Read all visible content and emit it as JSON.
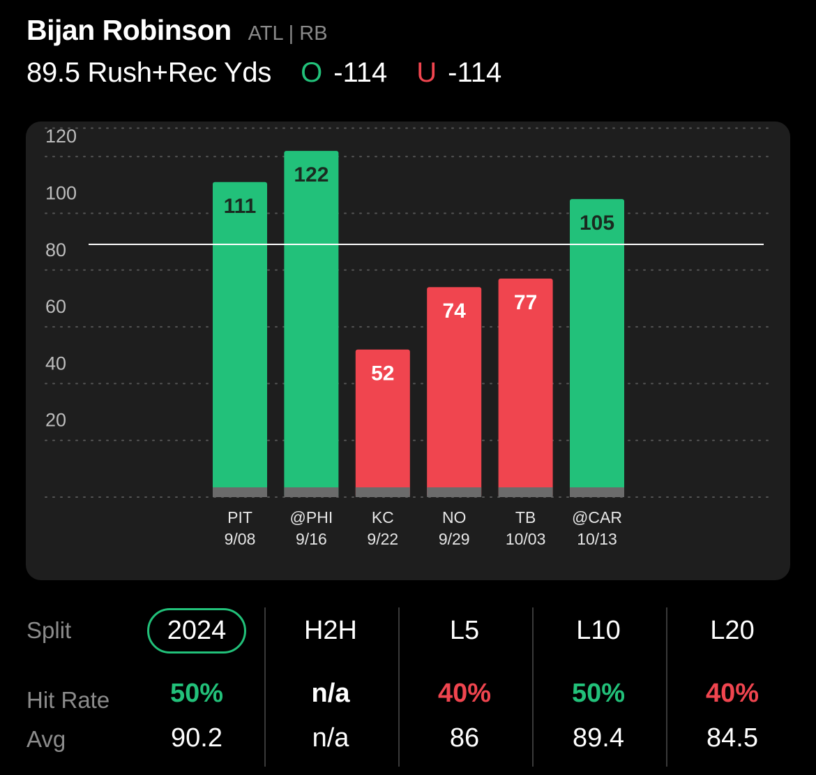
{
  "header": {
    "player_name": "Bijan Robinson",
    "player_meta": "ATL | RB",
    "prop_line": "89.5 Rush+Rec Yds",
    "over_letter": "O",
    "over_odds": "-114",
    "under_letter": "U",
    "under_odds": "-114"
  },
  "colors": {
    "over": "#22c17a",
    "under": "#f0454f",
    "card": "#1e1e1e",
    "bar_base": "#6b6b6b"
  },
  "chart_data": {
    "type": "bar",
    "title": "",
    "xlabel": "",
    "ylabel": "",
    "ylim": [
      0,
      130
    ],
    "yticks": [
      20,
      40,
      60,
      80,
      100,
      120
    ],
    "grid": true,
    "threshold": 89.5,
    "categories": [
      {
        "opponent": "PIT",
        "date": "9/08",
        "value": 111,
        "result": "over"
      },
      {
        "opponent": "@PHI",
        "date": "9/16",
        "value": 122,
        "result": "over"
      },
      {
        "opponent": "KC",
        "date": "9/22",
        "value": 52,
        "result": "under"
      },
      {
        "opponent": "NO",
        "date": "9/29",
        "value": 74,
        "result": "under"
      },
      {
        "opponent": "TB",
        "date": "10/03",
        "value": 77,
        "result": "under"
      },
      {
        "opponent": "@CAR",
        "date": "10/13",
        "value": 105,
        "result": "over"
      }
    ]
  },
  "stats": {
    "split_label": "Split",
    "hit_rate_label": "Hit Rate",
    "avg_label": "Avg",
    "columns": [
      {
        "label": "2024",
        "hit_rate": "50%",
        "hit_color": "green",
        "avg": "90.2",
        "selected": true
      },
      {
        "label": "H2H",
        "hit_rate": "n/a",
        "hit_color": "white",
        "avg": "n/a",
        "selected": false
      },
      {
        "label": "L5",
        "hit_rate": "40%",
        "hit_color": "red",
        "avg": "86",
        "selected": false
      },
      {
        "label": "L10",
        "hit_rate": "50%",
        "hit_color": "green",
        "avg": "89.4",
        "selected": false
      },
      {
        "label": "L20",
        "hit_rate": "40%",
        "hit_color": "red",
        "avg": "84.5",
        "selected": false
      }
    ]
  }
}
